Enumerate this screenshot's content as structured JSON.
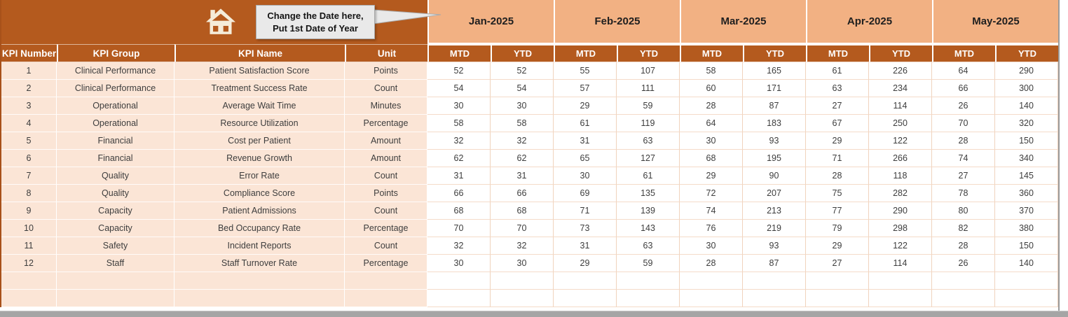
{
  "callout": {
    "line1": "Change the Date here,",
    "line2": "Put 1st Date of Year"
  },
  "column_headers": [
    "KPI Number",
    "KPI Group",
    "KPI Name",
    "Unit"
  ],
  "months": [
    "Jan-2025",
    "Feb-2025",
    "Mar-2025",
    "Apr-2025",
    "May-2025"
  ],
  "period_headers": [
    "MTD",
    "YTD"
  ],
  "rows": [
    {
      "kpi_number": "1",
      "kpi_group": "Clinical Performance",
      "kpi_name": "Patient Satisfaction Score",
      "unit": "Points",
      "values": [
        52,
        52,
        55,
        107,
        58,
        165,
        61,
        226,
        64,
        290
      ]
    },
    {
      "kpi_number": "2",
      "kpi_group": "Clinical Performance",
      "kpi_name": "Treatment Success Rate",
      "unit": "Count",
      "values": [
        54,
        54,
        57,
        111,
        60,
        171,
        63,
        234,
        66,
        300
      ]
    },
    {
      "kpi_number": "3",
      "kpi_group": "Operational",
      "kpi_name": "Average Wait Time",
      "unit": "Minutes",
      "values": [
        30,
        30,
        29,
        59,
        28,
        87,
        27,
        114,
        26,
        140
      ]
    },
    {
      "kpi_number": "4",
      "kpi_group": "Operational",
      "kpi_name": "Resource Utilization",
      "unit": "Percentage",
      "values": [
        58,
        58,
        61,
        119,
        64,
        183,
        67,
        250,
        70,
        320
      ]
    },
    {
      "kpi_number": "5",
      "kpi_group": "Financial",
      "kpi_name": "Cost per Patient",
      "unit": "Amount",
      "values": [
        32,
        32,
        31,
        63,
        30,
        93,
        29,
        122,
        28,
        150
      ]
    },
    {
      "kpi_number": "6",
      "kpi_group": "Financial",
      "kpi_name": "Revenue Growth",
      "unit": "Amount",
      "values": [
        62,
        62,
        65,
        127,
        68,
        195,
        71,
        266,
        74,
        340
      ]
    },
    {
      "kpi_number": "7",
      "kpi_group": "Quality",
      "kpi_name": "Error Rate",
      "unit": "Count",
      "values": [
        31,
        31,
        30,
        61,
        29,
        90,
        28,
        118,
        27,
        145
      ]
    },
    {
      "kpi_number": "8",
      "kpi_group": "Quality",
      "kpi_name": "Compliance Score",
      "unit": "Points",
      "values": [
        66,
        66,
        69,
        135,
        72,
        207,
        75,
        282,
        78,
        360
      ]
    },
    {
      "kpi_number": "9",
      "kpi_group": "Capacity",
      "kpi_name": "Patient Admissions",
      "unit": "Count",
      "values": [
        68,
        68,
        71,
        139,
        74,
        213,
        77,
        290,
        80,
        370
      ]
    },
    {
      "kpi_number": "10",
      "kpi_group": "Capacity",
      "kpi_name": "Bed Occupancy Rate",
      "unit": "Percentage",
      "values": [
        70,
        70,
        73,
        143,
        76,
        219,
        79,
        298,
        82,
        380
      ]
    },
    {
      "kpi_number": "11",
      "kpi_group": "Safety",
      "kpi_name": "Incident Reports",
      "unit": "Count",
      "values": [
        32,
        32,
        31,
        63,
        30,
        93,
        29,
        122,
        28,
        150
      ]
    },
    {
      "kpi_number": "12",
      "kpi_group": "Staff",
      "kpi_name": "Staff Turnover Rate",
      "unit": "Percentage",
      "values": [
        30,
        30,
        29,
        59,
        28,
        87,
        27,
        114,
        26,
        140
      ]
    }
  ],
  "empty_rows": 2,
  "colors": {
    "header_brown": "#b45a1e",
    "month_peach": "#f2b183",
    "row_peach": "#fbe5d6",
    "grid_line": "#f0d3bd",
    "callout_gray": "#e9e9e9",
    "icon_cream": "#f5ecd9",
    "scrollbar_gray": "#a5a5a5"
  }
}
